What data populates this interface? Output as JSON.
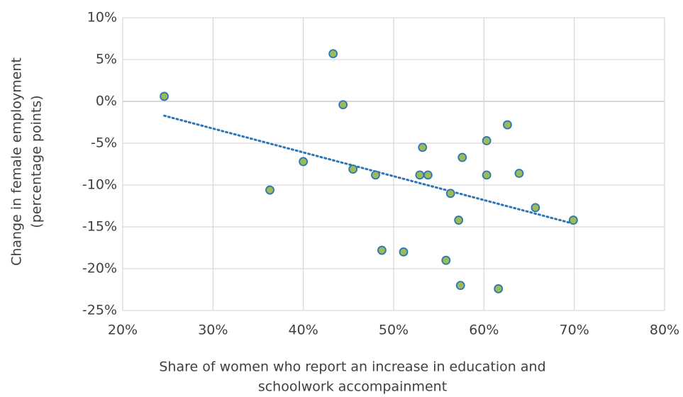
{
  "chart_data": {
    "type": "scatter",
    "x_label": [
      "Share of women who report an increase in education and",
      "schoolwork accompainment"
    ],
    "y_label": [
      "Change in female employment",
      "(percentage points)"
    ],
    "x": [
      24.6,
      36.3,
      40.0,
      43.3,
      44.4,
      45.5,
      48.0,
      48.7,
      51.1,
      53.2,
      52.9,
      53.8,
      55.8,
      56.3,
      57.2,
      57.4,
      57.6,
      60.3,
      60.3,
      61.6,
      62.6,
      63.9,
      65.7,
      69.9
    ],
    "values": [
      0.6,
      -10.6,
      -7.2,
      5.7,
      -0.4,
      -8.1,
      -8.8,
      -17.8,
      -18.0,
      -5.5,
      -8.8,
      -8.8,
      -19.0,
      -11.0,
      -14.2,
      -22.0,
      -6.7,
      -4.7,
      -8.8,
      -22.4,
      -2.8,
      -8.6,
      -12.7,
      -14.2
    ],
    "color": "#9bbb59",
    "edge_color": "#2e75b6",
    "trendline": "linear",
    "trendline_color": "#2e75b6",
    "xlim": [
      20,
      80
    ],
    "xticks": [
      {
        "value": 20,
        "label": "20%"
      },
      {
        "value": 30,
        "label": "30%"
      },
      {
        "value": 40,
        "label": "40%"
      },
      {
        "value": 50,
        "label": "50%"
      },
      {
        "value": 60,
        "label": "60%"
      },
      {
        "value": 70,
        "label": "70%"
      },
      {
        "value": 80,
        "label": "80%"
      }
    ],
    "ylim": [
      -25,
      10
    ],
    "yticks": [
      {
        "value": -25,
        "label": "-25%"
      },
      {
        "value": -20,
        "label": "-20%"
      },
      {
        "value": -15,
        "label": "-15%"
      },
      {
        "value": -10,
        "label": "-10%"
      },
      {
        "value": -5,
        "label": "-5%"
      },
      {
        "value": 0,
        "label": "0%"
      },
      {
        "value": 5,
        "label": "5%"
      },
      {
        "value": 10,
        "label": "10%"
      }
    ],
    "grid": true
  }
}
